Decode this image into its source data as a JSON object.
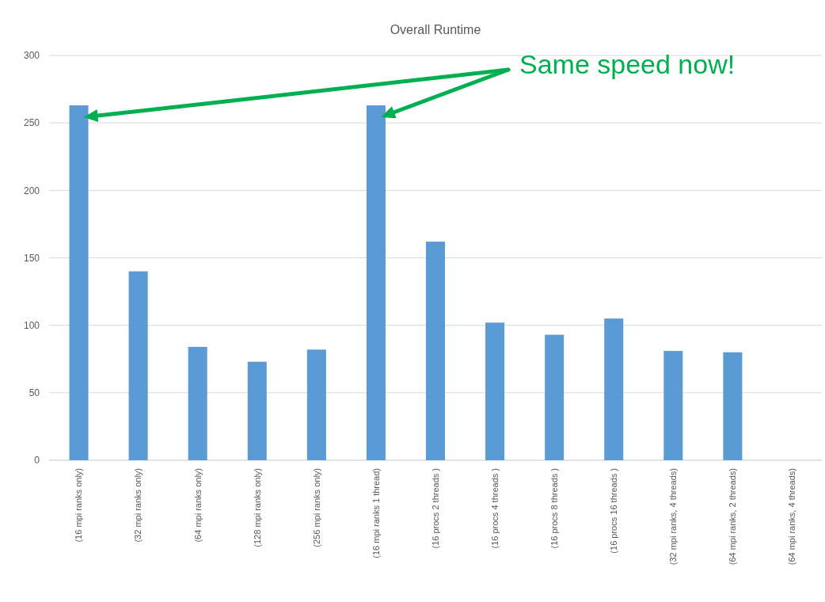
{
  "chart_data": {
    "type": "bar",
    "title": "Overall Runtime",
    "categories": [
      "(16 mpi ranks only)",
      "(32 mpi ranks only)",
      "(64 mpi ranks only)",
      "(128 mpi ranks only)",
      "(256 mpi ranks only)",
      "(16 mpi ranks 1 thread)",
      "(16 procs 2 threads )",
      "(16 procs 4 threads )",
      "(16 procs 8 threads )",
      "(16 procs 16 threads )",
      "(32 mpi ranks, 4 threads)",
      "(64 mpi ranks, 2 threads)",
      "(64 mpi ranks, 4 threads)"
    ],
    "values": [
      263,
      140,
      84,
      73,
      82,
      263,
      162,
      102,
      93,
      105,
      81,
      80,
      null
    ],
    "color": "#5b9bd5",
    "ylim": [
      0,
      300
    ],
    "yticks": [
      0,
      50,
      100,
      150,
      200,
      250,
      300
    ],
    "grid": "y",
    "annotations": [
      "Same speed now!"
    ]
  }
}
